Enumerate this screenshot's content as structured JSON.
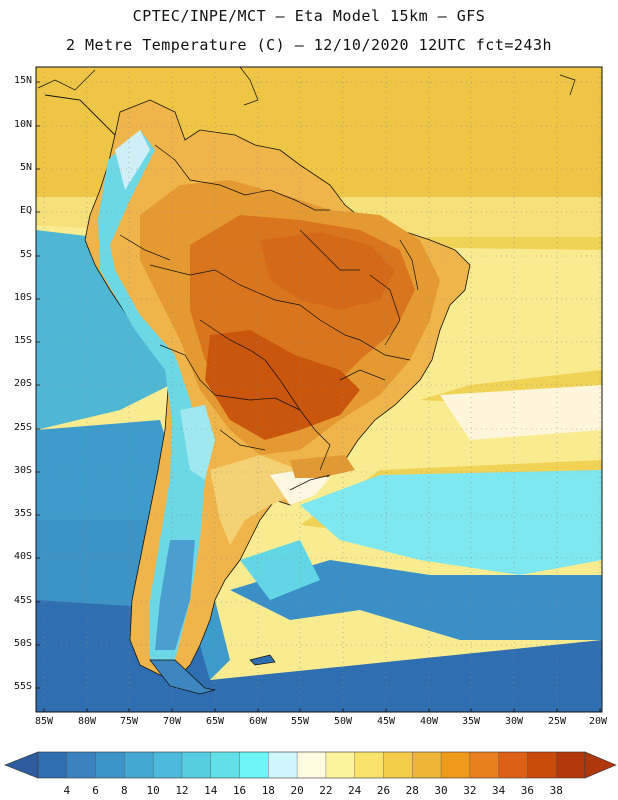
{
  "header": {
    "line1": "CPTEC/INPE/MCT –  Eta Model 15km – GFS",
    "line2": "2 Metre Temperature (C) – 12/10/2020 12UTC fct=243h"
  },
  "map": {
    "region": "South America",
    "lat_labels": [
      "15N",
      "10N",
      "5N",
      "EQ",
      "5S",
      "10S",
      "15S",
      "20S",
      "25S",
      "30S",
      "35S",
      "40S",
      "45S",
      "50S",
      "55S"
    ],
    "lon_labels": [
      "85W",
      "80W",
      "75W",
      "70W",
      "65W",
      "60W",
      "55W",
      "50W",
      "45W",
      "40W",
      "35W",
      "30W",
      "25W",
      "20W"
    ]
  },
  "colorbar": {
    "ticks": [
      "4",
      "6",
      "8",
      "10",
      "12",
      "14",
      "16",
      "18",
      "20",
      "22",
      "24",
      "26",
      "28",
      "30",
      "32",
      "34",
      "36",
      "38"
    ],
    "colors": [
      "#2f6eb0",
      "#3b82c0",
      "#3c95c9",
      "#44a8d2",
      "#4db9dc",
      "#57cde2",
      "#62e0ea",
      "#6cf6f8",
      "#cff6fb",
      "#fefbe0",
      "#fdf39a",
      "#f9e36a",
      "#f3cc48",
      "#efb537",
      "#f09a1c",
      "#e9801f",
      "#de6016",
      "#c94a0a",
      "#b3390a"
    ],
    "lo_color": "#2d5d9e",
    "hi_color": "#b0360c"
  }
}
